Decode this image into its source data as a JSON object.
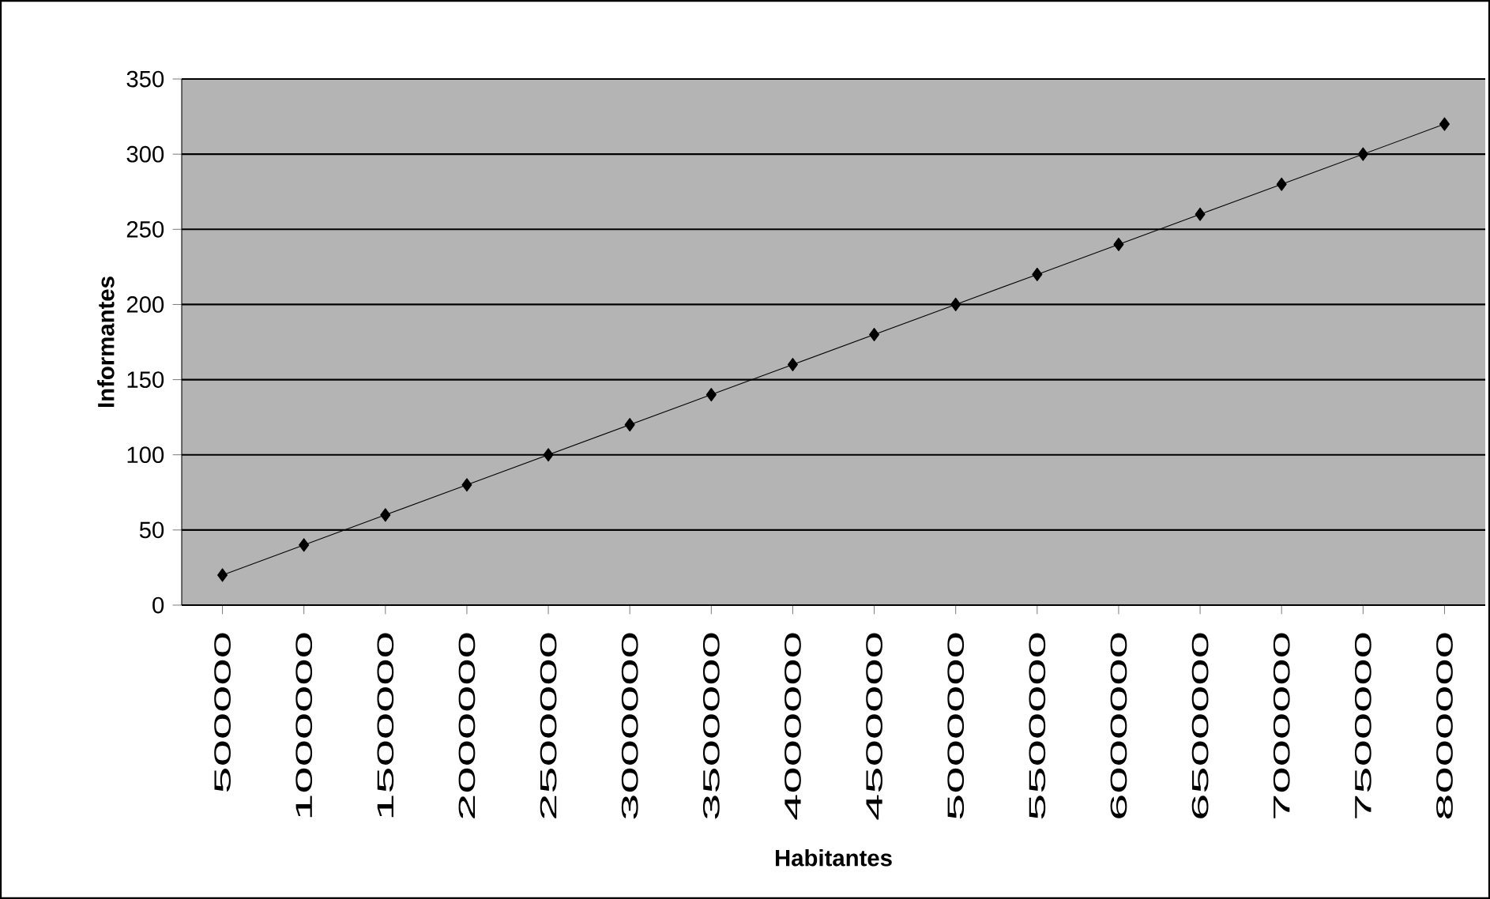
{
  "chart_data": {
    "type": "line",
    "xlabel": "Habitantes",
    "ylabel": "Informantes",
    "categories": [
      "500000",
      "1000000",
      "1500000",
      "2000000",
      "2500000",
      "3000000",
      "3500000",
      "4000000",
      "4500000",
      "5000000",
      "5500000",
      "6000000",
      "6500000",
      "7000000",
      "7500000",
      "8000000"
    ],
    "series": [
      {
        "color": "#000000",
        "values": [
          20,
          40,
          60,
          80,
          100,
          120,
          140,
          160,
          180,
          200,
          220,
          240,
          260,
          280,
          300,
          320
        ]
      }
    ],
    "ylim": [
      0,
      350
    ],
    "yticks": [
      0,
      50,
      100,
      150,
      200,
      250,
      300,
      350
    ],
    "grid": "y",
    "marker": "diamond",
    "line_style": "solid"
  }
}
